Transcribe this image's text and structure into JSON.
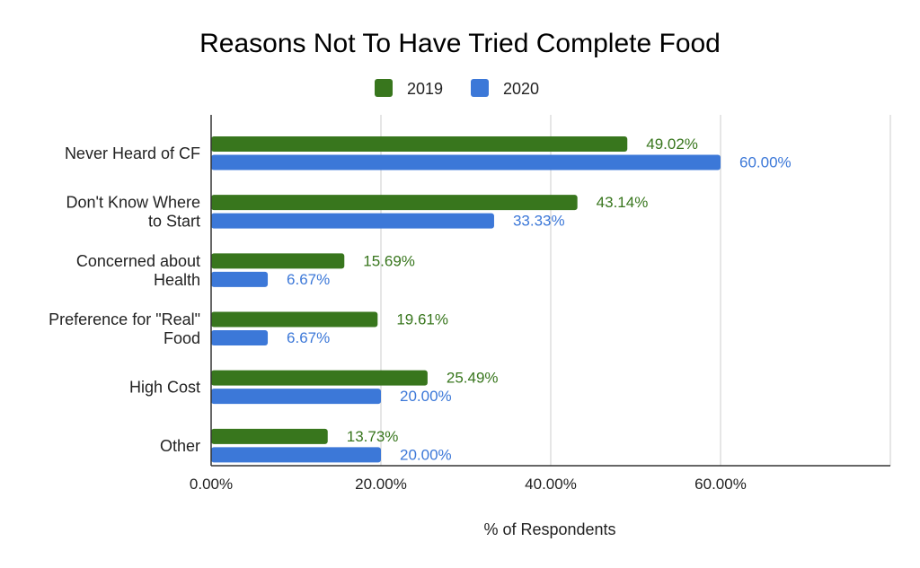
{
  "chart_data": {
    "type": "bar",
    "orientation": "horizontal",
    "title": "Reasons Not To Have Tried Complete Food",
    "xlabel": "% of Respondents",
    "ylabel": "",
    "categories": [
      [
        "Never Heard of CF"
      ],
      [
        "Don't Know Where",
        "to Start"
      ],
      [
        "Concerned about",
        "Health"
      ],
      [
        "Preference for \"Real\"",
        "Food"
      ],
      [
        "High Cost"
      ],
      [
        "Other"
      ]
    ],
    "series": [
      {
        "name": "2019",
        "color": "#38761d",
        "values": [
          49.02,
          43.14,
          15.69,
          19.61,
          25.49,
          13.73
        ],
        "labels": [
          "49.02%",
          "43.14%",
          "15.69%",
          "19.61%",
          "25.49%",
          "13.73%"
        ]
      },
      {
        "name": "2020",
        "color": "#3c78d8",
        "values": [
          60.0,
          33.33,
          6.67,
          6.67,
          20.0,
          20.0
        ],
        "labels": [
          "60.00%",
          "33.33%",
          "6.67%",
          "6.67%",
          "20.00%",
          "20.00%"
        ]
      }
    ],
    "xlim": [
      0,
      80
    ],
    "xticks": [
      0,
      20,
      40,
      60
    ],
    "xtick_labels": [
      "0.00%",
      "20.00%",
      "40.00%",
      "60.00%"
    ],
    "grid": true,
    "legend_position": "top-center"
  }
}
